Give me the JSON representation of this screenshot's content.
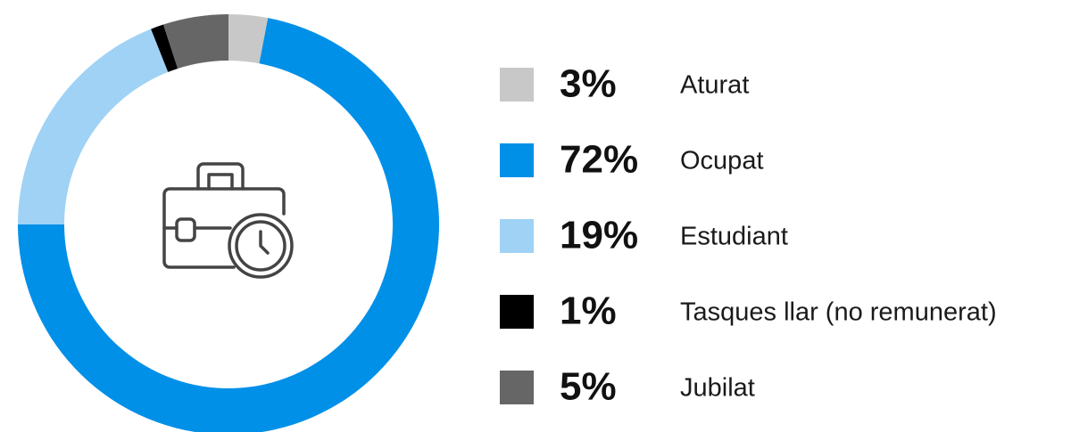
{
  "chart_data": {
    "type": "pie",
    "donut": true,
    "categories": [
      "Aturat",
      "Ocupat",
      "Estudiant",
      "Tasques llar (no remunerat)",
      "Jubilat"
    ],
    "values": [
      3,
      72,
      19,
      1,
      5
    ],
    "value_labels": [
      "3%",
      "72%",
      "19%",
      "1%",
      "5%"
    ],
    "colors": [
      "#c8c8c8",
      "#0090e8",
      "#9fd2f5",
      "#000000",
      "#666666"
    ]
  }
}
